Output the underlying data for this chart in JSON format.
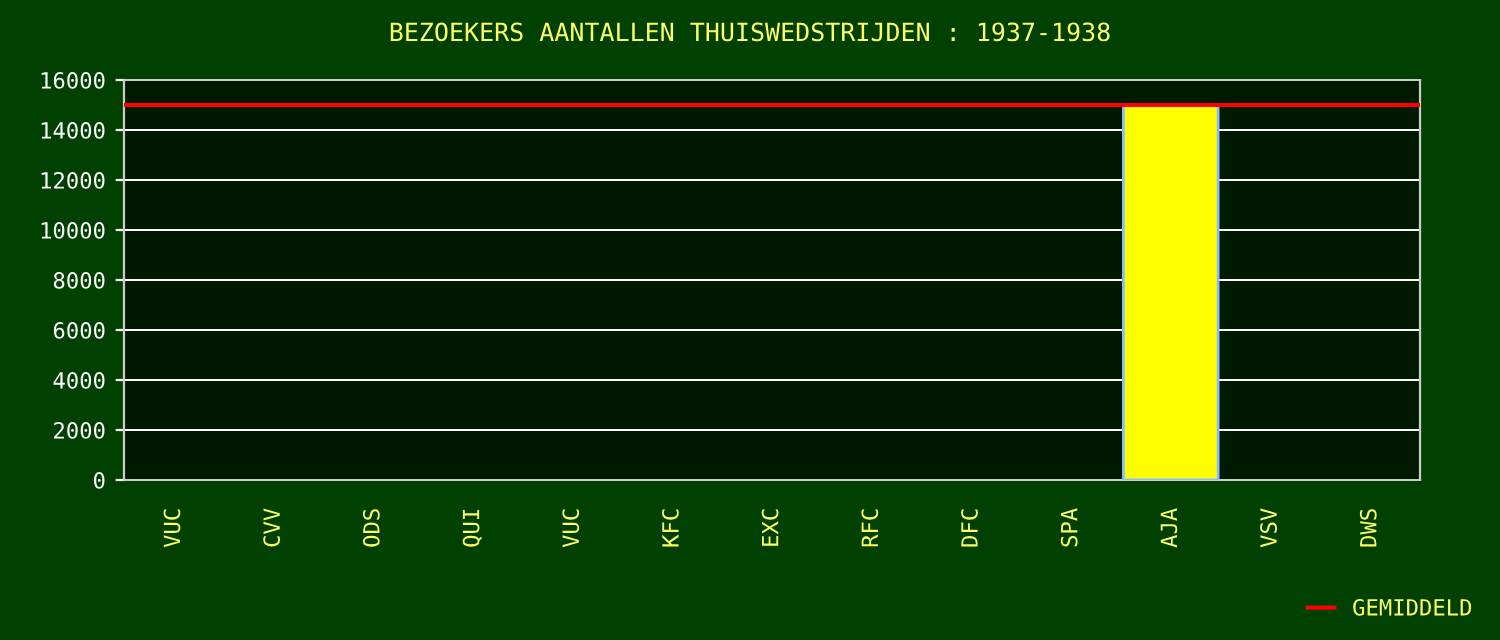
{
  "chart_data": {
    "type": "bar",
    "title": "BEZOEKERS AANTALLEN THUISWEDSTRIJDEN : 1937-1938",
    "categories": [
      "VUC",
      "CVV",
      "ODS",
      "QUI",
      "VUC",
      "KFC",
      "EXC",
      "RFC",
      "DFC",
      "SPA",
      "AJA",
      "VSV",
      "DWS"
    ],
    "values": [
      null,
      null,
      null,
      null,
      null,
      null,
      null,
      null,
      null,
      null,
      15000,
      null,
      null
    ],
    "color": "#ffff00",
    "ylim": [
      0,
      16000
    ],
    "yticks": [
      0,
      2000,
      4000,
      6000,
      8000,
      10000,
      12000,
      14000,
      16000
    ],
    "grid": "y",
    "ref_lines": [
      {
        "axis": "y",
        "value": 15000,
        "label": "GEMIDDELD",
        "color": "#ff0000"
      }
    ],
    "legend": "bottom right"
  }
}
